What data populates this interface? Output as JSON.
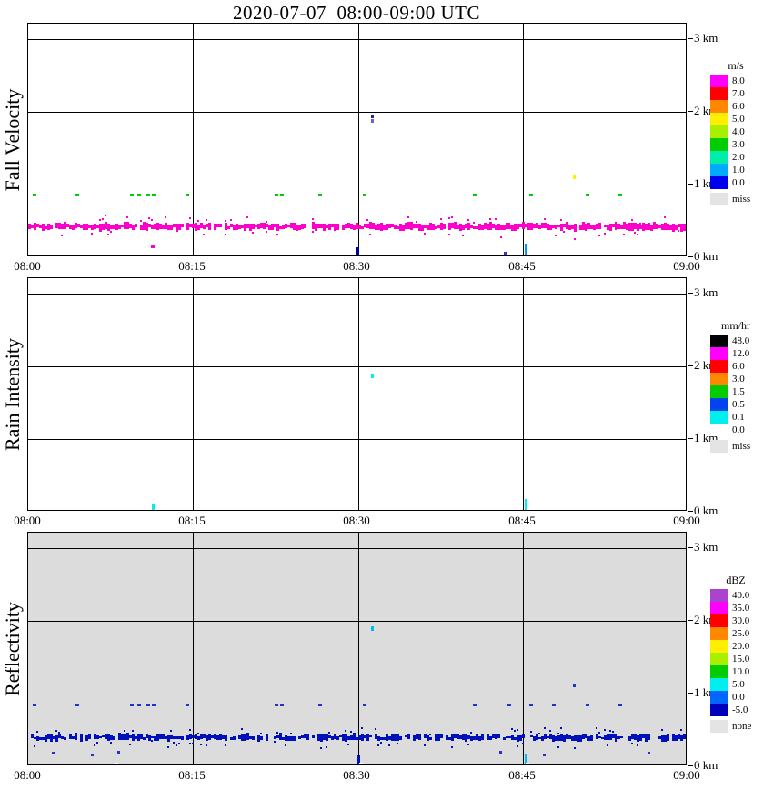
{
  "title": "2020-07-07  08:00-09:00 UTC",
  "x_ticks": [
    "08:00",
    "08:15",
    "08:30",
    "08:45",
    "09:00"
  ],
  "height_ticks": [
    "3 km",
    "2 km",
    "1 km",
    "0 km"
  ],
  "chart_data": {
    "type": "heatmap",
    "x_axis": {
      "start": "08:00",
      "end": "09:00",
      "unit": "UTC",
      "tick_labels": [
        "08:00",
        "08:15",
        "08:30",
        "08:45",
        "09:00"
      ]
    },
    "y_axis": {
      "min_km": 0,
      "max_km": 3.2,
      "tick_labels": [
        "3 km",
        "2 km",
        "1 km",
        "0 km"
      ]
    },
    "panels": [
      {
        "id": "fall-velocity",
        "ylabel": "Fall Velocity",
        "unit": "m/s",
        "background": "#ffffff",
        "legend": [
          {
            "label": "8.0",
            "color": "#ff00ff"
          },
          {
            "label": "7.0",
            "color": "#ff0000"
          },
          {
            "label": "6.0",
            "color": "#ff8800"
          },
          {
            "label": "5.0",
            "color": "#ffee00"
          },
          {
            "label": "4.0",
            "color": "#aaee00"
          },
          {
            "label": "3.0",
            "color": "#00cc00"
          },
          {
            "label": "2.0",
            "color": "#00eeaa"
          },
          {
            "label": "1.0",
            "color": "#00aaff"
          },
          {
            "label": "0.0",
            "color": "#0000ee"
          },
          {
            "label": "miss",
            "color": "#e4e4e4",
            "gap": true
          }
        ],
        "bands": [
          {
            "t0": 0,
            "t1": 60,
            "h_km": 0.42,
            "thickness_px": 6,
            "jitter": 3,
            "gap_chance": 0.05,
            "speck_chance": 0.1,
            "color": "#ff00cc",
            "seed": 11,
            "note": "continuous near-surface echo, fall velocity ~8 m/s"
          }
        ],
        "dot_rows": [
          {
            "h": 0.86,
            "v": "3.0",
            "color": "#00cc00",
            "w": 4,
            "hh": 3,
            "times": [
              0.6,
              4.5,
              9.4,
              10.1,
              10.9,
              11.4,
              14.5,
              22.6,
              23.1,
              26.6,
              30.6,
              40.6,
              45.8,
              50.9,
              53.9
            ]
          }
        ],
        "points": [
          {
            "t": 49.7,
            "h": 1.1,
            "v": "5.0",
            "color": "#ffee00",
            "w": 3,
            "hh": 4
          },
          {
            "t": 31.3,
            "h": 1.94,
            "v": "0.0",
            "color": "#2222aa",
            "w": 3,
            "hh": 4
          },
          {
            "t": 31.3,
            "h": 1.87,
            "v": "1.0",
            "color": "#6666cc",
            "w": 3,
            "hh": 4
          },
          {
            "t": 11.3,
            "h": 0.14,
            "v": "8.0",
            "color": "#ff00cc",
            "w": 4,
            "hh": 3
          },
          {
            "t": 30.0,
            "h": 0.08,
            "v": "0.0",
            "color": "#000099",
            "w": 3,
            "hh": 10
          },
          {
            "t": 43.4,
            "h": 0.05,
            "v": "0.0",
            "color": "#3333bb",
            "w": 3,
            "hh": 5
          },
          {
            "t": 45.3,
            "h": 0.1,
            "v": "1.0",
            "color": "#0099ee",
            "w": 3,
            "hh": 14
          }
        ]
      },
      {
        "id": "rain-intensity",
        "ylabel": "Rain Intensity",
        "unit": "mm/hr",
        "background": "#ffffff",
        "legend": [
          {
            "label": "48.0",
            "color": "#000000"
          },
          {
            "label": "12.0",
            "color": "#ff00ff"
          },
          {
            "label": "6.0",
            "color": "#ff0000"
          },
          {
            "label": "3.0",
            "color": "#ff8800"
          },
          {
            "label": "1.5",
            "color": "#00cc00"
          },
          {
            "label": "0.5",
            "color": "#0044ee"
          },
          {
            "label": "0.1",
            "color": "#00eeee"
          },
          {
            "label": "0.0",
            "color": "#ffffff"
          },
          {
            "label": "miss",
            "color": "#e4e4e4",
            "gap": true
          }
        ],
        "bands": [],
        "dot_rows": [],
        "points": [
          {
            "t": 31.3,
            "h": 1.87,
            "v": "0.1",
            "color": "#00eeee",
            "w": 3,
            "hh": 5
          },
          {
            "t": 11.4,
            "h": 0.06,
            "v": "0.1",
            "color": "#00eeee",
            "w": 3,
            "hh": 6
          },
          {
            "t": 45.3,
            "h": 0.1,
            "v": "0.1",
            "color": "#00eeee",
            "w": 3,
            "hh": 13
          }
        ]
      },
      {
        "id": "reflectivity",
        "ylabel": "Reflectivity",
        "unit": "dBZ",
        "background": "#dcdcdc",
        "legend": [
          {
            "label": "40.0",
            "color": "#aa44cc"
          },
          {
            "label": "35.0",
            "color": "#ff00ff"
          },
          {
            "label": "30.0",
            "color": "#ff0000"
          },
          {
            "label": "25.0",
            "color": "#ff8800"
          },
          {
            "label": "20.0",
            "color": "#ffee00"
          },
          {
            "label": "15.0",
            "color": "#aaee00"
          },
          {
            "label": "10.0",
            "color": "#00cc00"
          },
          {
            "label": "5.0",
            "color": "#00eeee"
          },
          {
            "label": "0.0",
            "color": "#0066ff"
          },
          {
            "label": "-5.0",
            "color": "#0000bb"
          },
          {
            "label": "none",
            "color": "#e4e4e4",
            "gap": true
          }
        ],
        "bands": [
          {
            "t0": 0,
            "t1": 60,
            "h_km": 0.4,
            "thickness_px": 5,
            "jitter": 3,
            "gap_chance": 0.14,
            "speck_chance": 0.16,
            "color": "#0011bb",
            "seed": 23,
            "note": "continuous near-surface echo ~0 dBZ"
          }
        ],
        "dot_rows": [
          {
            "h": 0.85,
            "v": "0.0",
            "color": "#2233cc",
            "w": 4,
            "hh": 3,
            "times": [
              0.6,
              4.5,
              9.4,
              10.1,
              10.9,
              11.4,
              14.5,
              22.6,
              23.1,
              26.6,
              30.6,
              40.6,
              43.8,
              45.8,
              47.8,
              50.9,
              53.9
            ]
          }
        ],
        "points": [
          {
            "t": 49.7,
            "h": 1.11,
            "v": "0.0",
            "color": "#2233cc",
            "w": 3,
            "hh": 4
          },
          {
            "t": 31.3,
            "h": 1.9,
            "v": "5.0",
            "color": "#00bbee",
            "w": 3,
            "hh": 5
          },
          {
            "t": 30.1,
            "h": 0.07,
            "v": "-5.0",
            "color": "#0011bb",
            "w": 3,
            "hh": 12
          },
          {
            "t": 45.3,
            "h": 0.1,
            "v": "5.0",
            "color": "#00bbee",
            "w": 3,
            "hh": 13
          },
          {
            "t": 2.3,
            "h": 0.18,
            "v": "0.0",
            "color": "#2233cc",
            "w": 3,
            "hh": 3
          },
          {
            "t": 5.8,
            "h": 0.16,
            "v": "0.0",
            "color": "#2233cc",
            "w": 3,
            "hh": 3
          },
          {
            "t": 8.2,
            "h": 0.2,
            "v": "0.0",
            "color": "#2233cc",
            "w": 3,
            "hh": 3
          },
          {
            "t": 43.0,
            "h": 0.2,
            "v": "0.0",
            "color": "#2233cc",
            "w": 3,
            "hh": 3
          },
          {
            "t": 47.0,
            "h": 0.16,
            "v": "0.0",
            "color": "#2233cc",
            "w": 3,
            "hh": 3
          },
          {
            "t": 56.5,
            "h": 0.18,
            "v": "0.0",
            "color": "#2233cc",
            "w": 3,
            "hh": 3
          },
          {
            "t": 8.0,
            "h": 0.02,
            "v": "",
            "color": "#ffffff",
            "w": 4,
            "hh": 4
          },
          {
            "t": 30.3,
            "h": 0.02,
            "v": "",
            "color": "#ffffff",
            "w": 4,
            "hh": 4
          },
          {
            "t": 45.4,
            "h": 0.02,
            "v": "",
            "color": "#ffffff",
            "w": 4,
            "hh": 4
          }
        ]
      }
    ]
  }
}
